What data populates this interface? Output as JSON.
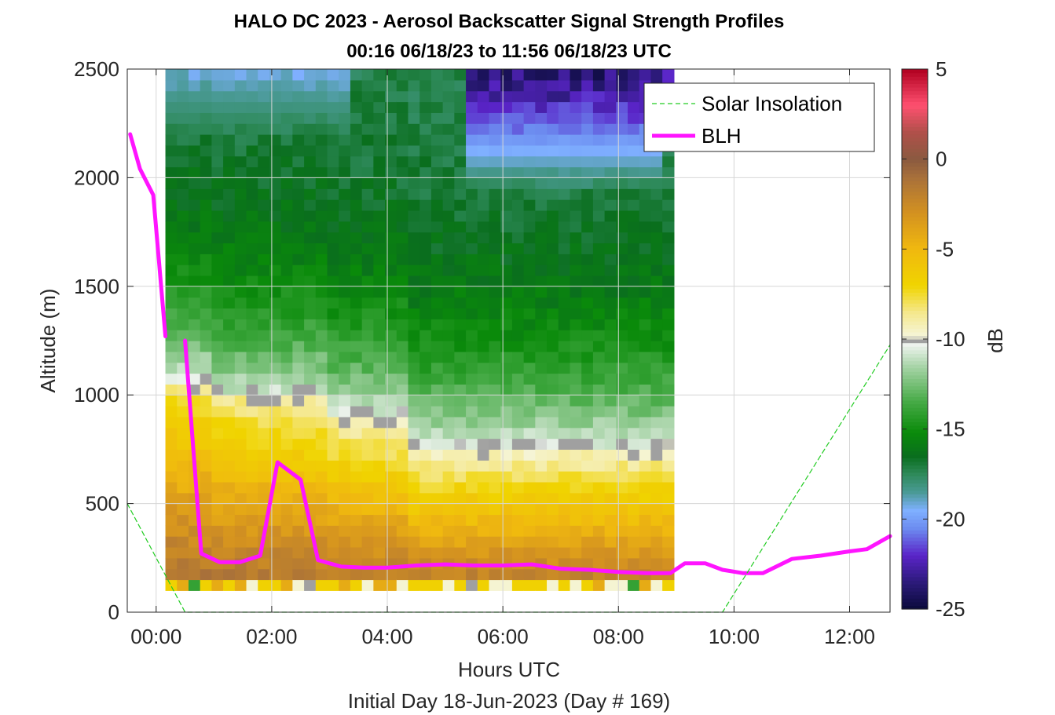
{
  "chart_data": {
    "type": "heatmap",
    "title": "HALO DC 2023 - Aerosol Backscatter Signal Strength Profiles",
    "subtitle": "00:16 06/18/23 to 11:56 06/18/23  UTC",
    "xlabel": "Hours UTC",
    "xlabel2": "Initial Day 18-Jun-2023 (Day # 169)",
    "ylabel": "Altitude (m)",
    "xlim_hours": [
      -0.5,
      12.7
    ],
    "ylim": [
      0,
      2500
    ],
    "x_ticks": [
      {
        "value": 0,
        "label": "00:00"
      },
      {
        "value": 2,
        "label": "02:00"
      },
      {
        "value": 4,
        "label": "04:00"
      },
      {
        "value": 6,
        "label": "06:00"
      },
      {
        "value": 8,
        "label": "08:00"
      },
      {
        "value": 10,
        "label": "10:00"
      },
      {
        "value": 12,
        "label": "12:00"
      }
    ],
    "y_ticks": [
      {
        "value": 0,
        "label": "0"
      },
      {
        "value": 500,
        "label": "500"
      },
      {
        "value": 1000,
        "label": "1000"
      },
      {
        "value": 1500,
        "label": "1500"
      },
      {
        "value": 2000,
        "label": "2000"
      },
      {
        "value": 2500,
        "label": "2500"
      }
    ],
    "grid": true,
    "colorbar": {
      "label": "dB",
      "range": [
        -25,
        5
      ],
      "ticks": [
        {
          "value": 5,
          "label": "5"
        },
        {
          "value": 0,
          "label": "0"
        },
        {
          "value": -5,
          "label": "-5"
        },
        {
          "value": -10,
          "label": "-10"
        },
        {
          "value": -15,
          "label": "-15"
        },
        {
          "value": -20,
          "label": "-20"
        },
        {
          "value": -25,
          "label": "-25"
        }
      ],
      "stops": [
        {
          "value": -25,
          "color": "#0a0a3a"
        },
        {
          "value": -23.5,
          "color": "#2c1a7a"
        },
        {
          "value": -22,
          "color": "#5a24c8"
        },
        {
          "value": -20.5,
          "color": "#6c8cf0"
        },
        {
          "value": -19.5,
          "color": "#7fb0ff"
        },
        {
          "value": -18.5,
          "color": "#4a9a96"
        },
        {
          "value": -17.5,
          "color": "#2e8a5a"
        },
        {
          "value": -16.5,
          "color": "#0a6e1e"
        },
        {
          "value": -15.2,
          "color": "#0a8a0a"
        },
        {
          "value": -13.5,
          "color": "#45aa45"
        },
        {
          "value": -11.5,
          "color": "#a8d4a8"
        },
        {
          "value": -10.3,
          "color": "#eef3ee"
        },
        {
          "value": -10.1,
          "color": "#a0a0a0"
        },
        {
          "value": -9.8,
          "color": "#f5f5d8"
        },
        {
          "value": -8.5,
          "color": "#f5e88c"
        },
        {
          "value": -7,
          "color": "#f0d400"
        },
        {
          "value": -5,
          "color": "#f0b90f"
        },
        {
          "value": -3,
          "color": "#d49220"
        },
        {
          "value": -1,
          "color": "#a8703a"
        },
        {
          "value": 0,
          "color": "#8a5a40"
        },
        {
          "value": 1.5,
          "color": "#b0504a"
        },
        {
          "value": 3,
          "color": "#ff5070"
        },
        {
          "value": 5,
          "color": "#b00020"
        }
      ]
    },
    "heatmap": {
      "x_start": 0.16,
      "x_step": 0.2,
      "cols": 44,
      "altitude_start": 0,
      "altitude_step": 50,
      "rows": 50,
      "data_bottom": 150,
      "data_top": 2500
    },
    "series": [
      {
        "name": "BLH",
        "color": "#ff14ff",
        "style": "solid",
        "segments": [
          [
            [
              -0.45,
              2200
            ],
            [
              -0.28,
              2040
            ],
            [
              -0.05,
              1920
            ],
            [
              0.16,
              1270
            ]
          ],
          [
            [
              0.5,
              1250
            ],
            [
              0.78,
              270
            ],
            [
              1.1,
              230
            ],
            [
              1.45,
              230
            ],
            [
              1.8,
              260
            ],
            [
              2.1,
              690
            ],
            [
              2.5,
              610
            ],
            [
              2.8,
              240
            ],
            [
              3.2,
              210
            ],
            [
              3.6,
              205
            ],
            [
              4.0,
              205
            ],
            [
              4.5,
              215
            ],
            [
              5.0,
              220
            ],
            [
              5.5,
              215
            ],
            [
              6.0,
              215
            ],
            [
              6.5,
              220
            ],
            [
              7.0,
              200
            ],
            [
              7.5,
              195
            ],
            [
              8.0,
              185
            ],
            [
              8.5,
              180
            ],
            [
              8.9,
              180
            ],
            [
              9.15,
              225
            ],
            [
              9.5,
              225
            ],
            [
              9.8,
              195
            ],
            [
              10.15,
              180
            ],
            [
              10.5,
              180
            ],
            [
              11.0,
              245
            ],
            [
              11.5,
              260
            ],
            [
              12.0,
              280
            ],
            [
              12.3,
              290
            ],
            [
              12.7,
              350
            ]
          ]
        ]
      },
      {
        "name": "Solar Insolation",
        "color": "#22cc22",
        "style": "dashed",
        "segments": [
          [
            [
              -0.5,
              500
            ],
            [
              0.5,
              0
            ],
            [
              9.8,
              0
            ],
            [
              12.7,
              1230
            ]
          ]
        ]
      }
    ]
  }
}
